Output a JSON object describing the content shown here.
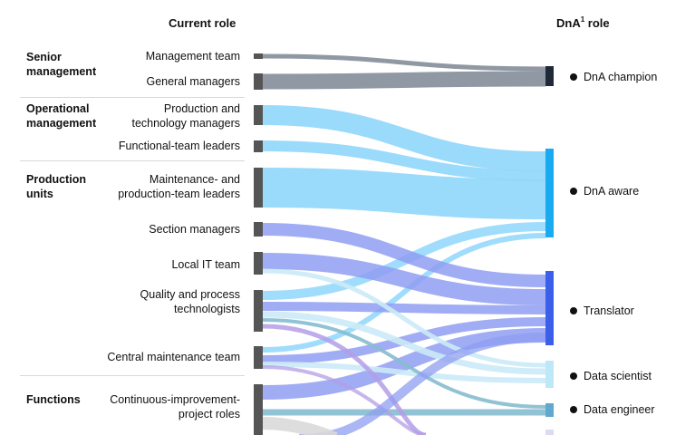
{
  "headers": {
    "current": "Current role",
    "dna": "DnA",
    "dna_sup": "1",
    "dna_suffix": " role"
  },
  "groups": [
    {
      "label": "Senior\nmanagement"
    },
    {
      "label": "Operational\nmanagement"
    },
    {
      "label": "Production\nunits"
    },
    {
      "label": "Functions"
    }
  ],
  "sources": [
    "Management team",
    "General managers",
    "Production and\ntechnology managers",
    "Functional-team leaders",
    "Maintenance- and\nproduction-team leaders",
    "Section managers",
    "Local IT team",
    "Quality and process\ntechnologists",
    "Central maintenance team",
    "Continuous-improvement-\nproject roles"
  ],
  "targets": [
    {
      "label": "DnA champion",
      "color": "#1f2a36"
    },
    {
      "label": "DnA aware",
      "color": "#19aaf0"
    },
    {
      "label": "Translator",
      "color": "#3b5fe8"
    },
    {
      "label": "Data scientist",
      "color": "#bde8f8"
    },
    {
      "label": "Data engineer",
      "color": "#5fa9cc"
    }
  ],
  "colors": {
    "source_node": "#555555",
    "flow_champion": "#8a949e",
    "flow_aware": "#8fd6fb",
    "flow_translator": "#8f9ef2",
    "flow_light": "#cbeaf7",
    "flow_purple": "#b49ee6",
    "flow_teal": "#86bccf",
    "flow_grey": "#d9d9d9"
  }
}
